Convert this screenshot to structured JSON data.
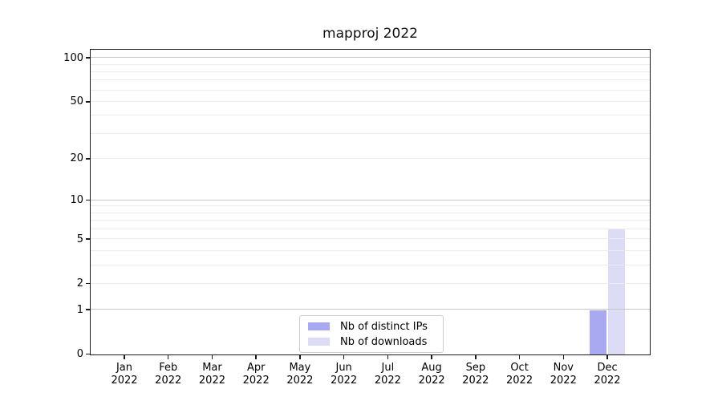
{
  "chart_data": {
    "type": "bar",
    "title": "mapproj 2022",
    "categories": [
      "Jan 2022",
      "Feb 2022",
      "Mar 2022",
      "Apr 2022",
      "May 2022",
      "Jun 2022",
      "Jul 2022",
      "Aug 2022",
      "Sep 2022",
      "Oct 2022",
      "Nov 2022",
      "Dec 2022"
    ],
    "series": [
      {
        "name": "Nb of distinct IPs",
        "color": "#a9a9f2",
        "values": [
          0,
          0,
          0,
          0,
          0,
          0,
          0,
          0,
          0,
          0,
          0,
          1
        ]
      },
      {
        "name": "Nb of downloads",
        "color": "#dcdcf7",
        "values": [
          0,
          0,
          0,
          0,
          0,
          0,
          0,
          0,
          0,
          0,
          0,
          6
        ]
      }
    ],
    "xlabel": "",
    "ylabel": "",
    "y_scale": "log1p",
    "ylim": [
      0,
      113
    ],
    "y_ticks": [
      0,
      1,
      2,
      5,
      10,
      20,
      50,
      100
    ],
    "y_minor_gridlines": [
      3,
      4,
      6,
      7,
      8,
      9,
      30,
      40,
      60,
      70,
      80,
      90
    ],
    "y_emphasized_gridlines": [
      1,
      10,
      100
    ],
    "grid": "horizontal",
    "legend_position": "lower center"
  },
  "colors": {
    "background": "#ffffff",
    "spine": "#1b1b1b",
    "grid_minor": "#ececec",
    "grid_major": "#c6c6c6",
    "legend_border": "#cccccc",
    "text": "#000000"
  }
}
